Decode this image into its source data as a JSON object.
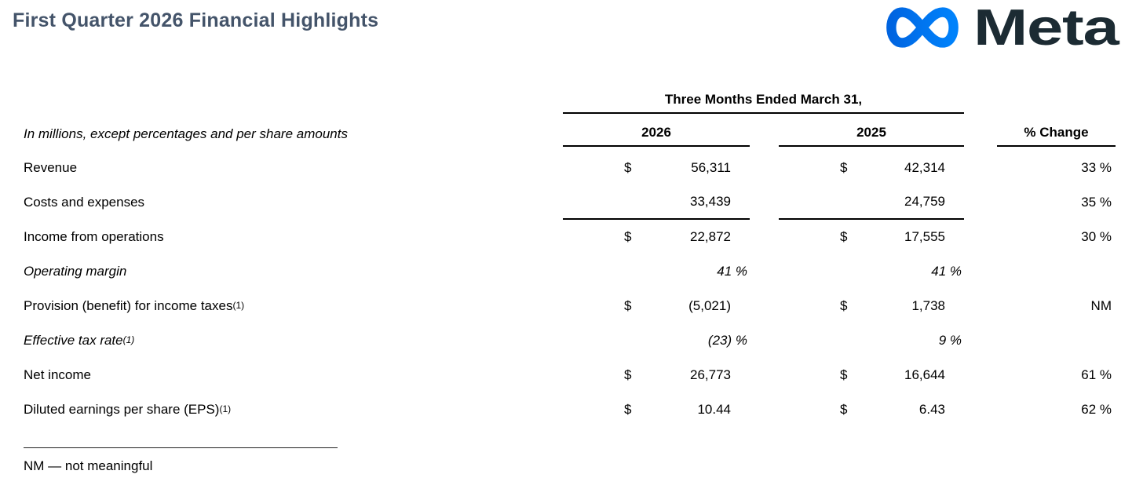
{
  "header": {
    "title": "First Quarter 2026 Financial Highlights",
    "logo_text": "Meta",
    "brand_colors": {
      "logo_gradient_start": "#0064E0",
      "logo_gradient_end": "#0082FB",
      "wordmark": "#1C2B33",
      "title": "#44546A"
    }
  },
  "table": {
    "period_header": "Three Months Ended March 31,",
    "note": "In millions, except percentages and per share amounts",
    "columns": [
      "2026",
      "2025",
      "% Change"
    ],
    "rows": [
      {
        "label": "Revenue",
        "sup": "",
        "italic": false,
        "d1": "$",
        "v1": "56,311",
        "d2": "$",
        "v2": "42,314",
        "chg": "33 %",
        "pct": false,
        "underline": false
      },
      {
        "label": "Costs and expenses",
        "sup": "",
        "italic": false,
        "d1": "",
        "v1": "33,439",
        "d2": "",
        "v2": "24,759",
        "chg": "35 %",
        "pct": false,
        "underline": true
      },
      {
        "label": "Income from operations",
        "sup": "",
        "italic": false,
        "d1": "$",
        "v1": "22,872",
        "d2": "$",
        "v2": "17,555",
        "chg": "30 %",
        "pct": false,
        "underline": false
      },
      {
        "label": "Operating margin",
        "sup": "",
        "italic": true,
        "d1": "",
        "v1": "41 %",
        "d2": "",
        "v2": "41 %",
        "chg": "",
        "pct": true,
        "underline": false
      },
      {
        "label": "Provision (benefit) for income taxes",
        "sup": "(1)",
        "italic": false,
        "d1": "$",
        "v1": "(5,021)",
        "d2": "$",
        "v2": "1,738",
        "chg": "NM",
        "pct": false,
        "underline": false
      },
      {
        "label": "Effective tax rate ",
        "sup": "(1)",
        "italic": true,
        "d1": "",
        "v1": "(23) %",
        "d2": "",
        "v2": "9 %",
        "chg": "",
        "pct": true,
        "underline": false
      },
      {
        "label": "Net income",
        "sup": "",
        "italic": false,
        "d1": "$",
        "v1": "26,773",
        "d2": "$",
        "v2": "16,644",
        "chg": "61 %",
        "pct": false,
        "underline": false
      },
      {
        "label": "Diluted earnings per share (EPS)",
        "sup": "(1)",
        "italic": false,
        "d1": "$",
        "v1": "10.44",
        "d2": "$",
        "v2": "6.43",
        "chg": "62 %",
        "pct": false,
        "underline": false
      }
    ]
  },
  "footnote": {
    "text": "NM — not meaningful"
  }
}
